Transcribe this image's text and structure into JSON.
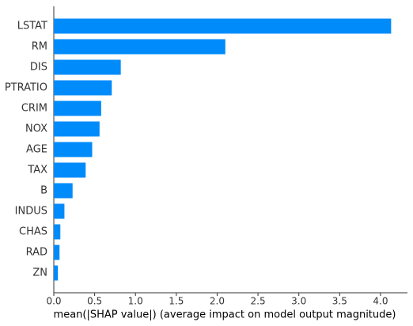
{
  "chart_data": {
    "type": "bar",
    "orientation": "horizontal",
    "x_label": "mean(|SHAP value|) (average impact on model output magnitude)",
    "categories": [
      "LSTAT",
      "RM",
      "DIS",
      "PTRATIO",
      "CRIM",
      "NOX",
      "AGE",
      "TAX",
      "B",
      "INDUS",
      "CHAS",
      "RAD",
      "ZN"
    ],
    "values": [
      4.13,
      2.1,
      0.82,
      0.71,
      0.58,
      0.56,
      0.47,
      0.39,
      0.23,
      0.13,
      0.08,
      0.07,
      0.05
    ],
    "color": "#008bfb",
    "xlim": [
      0,
      4.33
    ],
    "xticks": [
      {
        "value": 0,
        "label": "0.0"
      },
      0.5,
      {
        "value": 1,
        "label": "1.0"
      },
      1.5,
      {
        "value": 2,
        "label": "2.0"
      },
      2.5,
      {
        "value": 3,
        "label": "3.0"
      },
      3.5,
      {
        "value": 4,
        "label": "4.0"
      }
    ],
    "grid": false
  }
}
